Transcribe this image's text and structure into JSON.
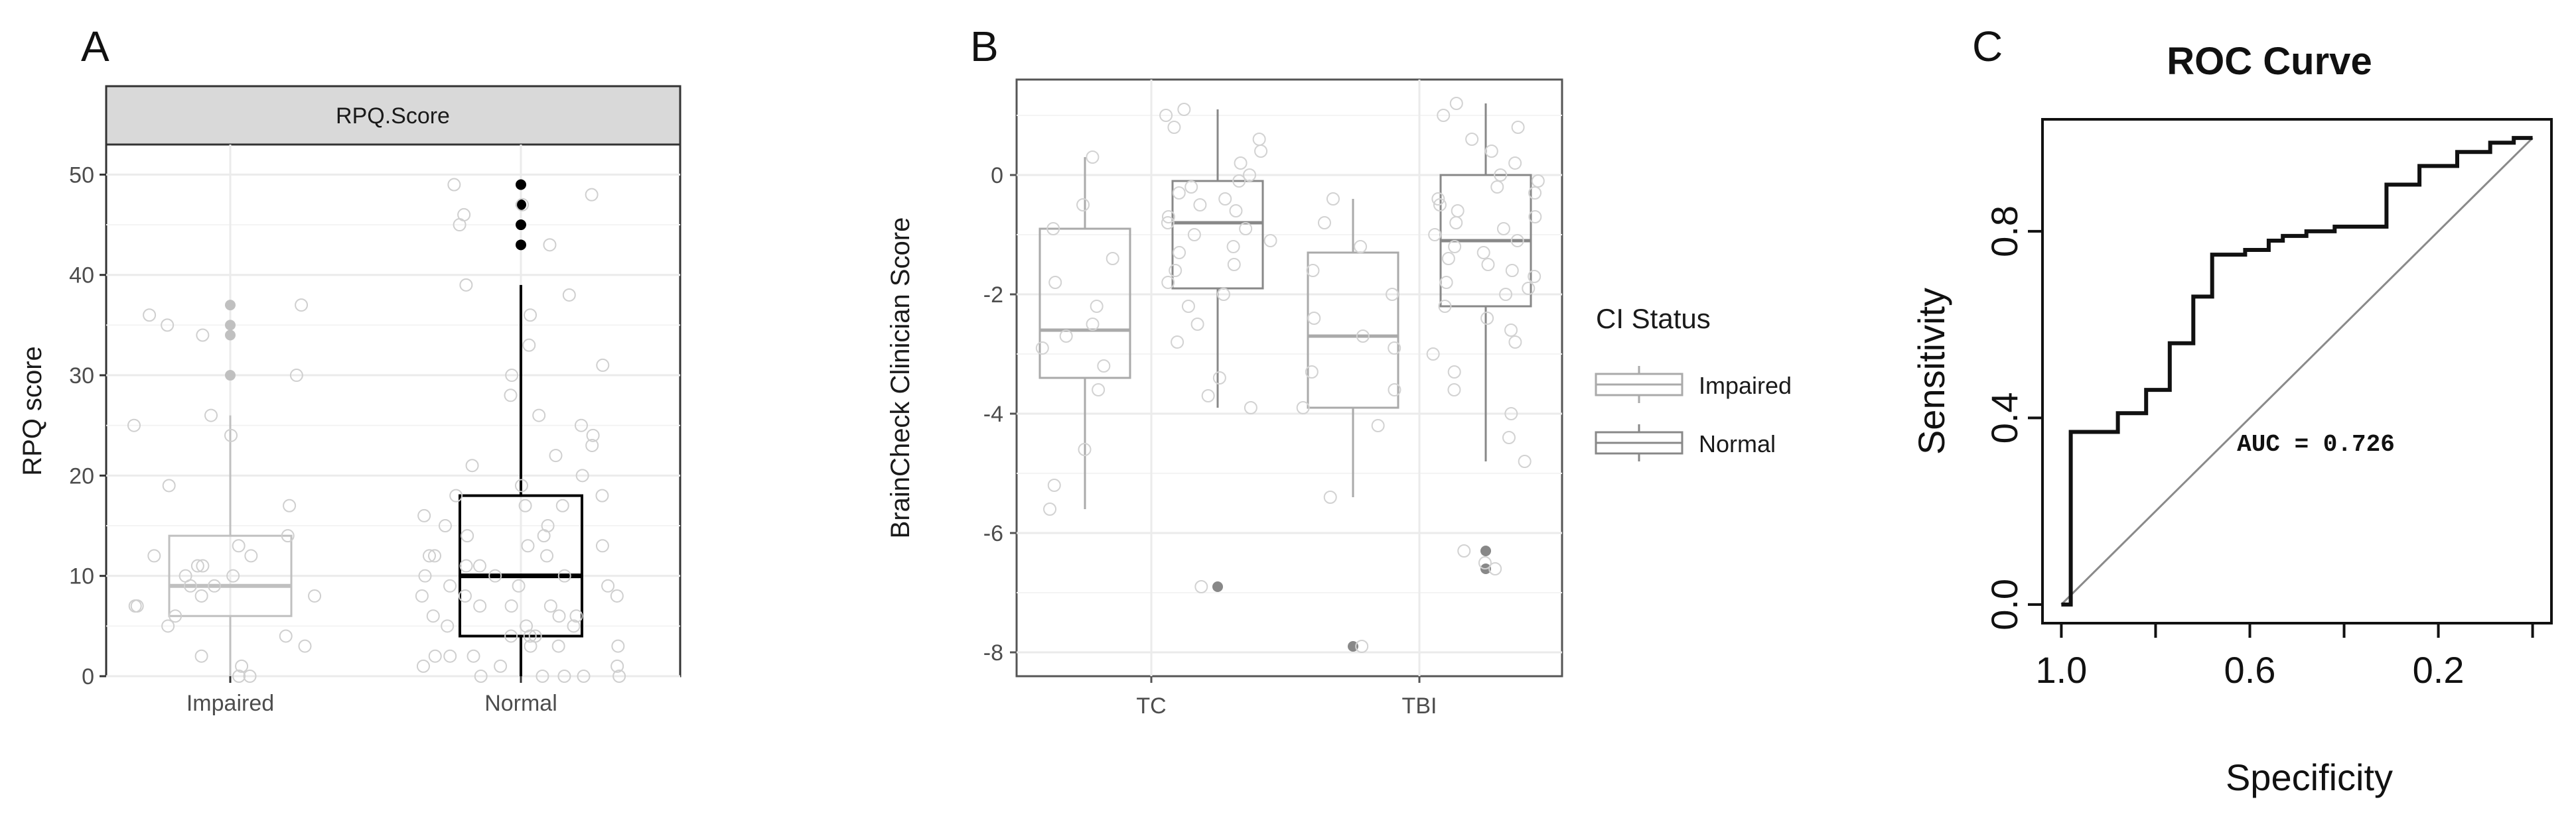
{
  "chart_data": [
    {
      "panel": "A",
      "type": "box",
      "strip_label": "RPQ.Score",
      "xlabel": "",
      "ylabel": "RPQ score",
      "categories": [
        "Impaired",
        "Normal"
      ],
      "ylim": [
        0,
        53
      ],
      "yticks": [
        0,
        10,
        20,
        30,
        40,
        50
      ],
      "grid": true,
      "colors": {
        "Impaired": "#c0c0c0",
        "Normal": "#000000"
      },
      "boxes": [
        {
          "category": "Impaired",
          "q1": 6,
          "median": 9,
          "q3": 14,
          "whisker_low": 0,
          "whisker_high": 26,
          "outliers": [
            30,
            34,
            35,
            37
          ]
        },
        {
          "category": "Normal",
          "q1": 4,
          "median": 10,
          "q3": 18,
          "whisker_low": 0,
          "whisker_high": 39,
          "outliers": [
            43,
            45,
            47,
            49
          ]
        }
      ],
      "points": [
        {
          "category": "Impaired",
          "values": [
            0,
            0,
            1,
            2,
            3,
            4,
            5,
            6,
            7,
            7,
            8,
            8,
            9,
            9,
            10,
            10,
            11,
            11,
            12,
            12,
            13,
            14,
            17,
            19,
            24,
            25,
            26,
            30,
            34,
            35,
            36,
            37
          ]
        },
        {
          "category": "Normal",
          "values": [
            0,
            0,
            0,
            0,
            0,
            1,
            1,
            1,
            2,
            2,
            2,
            3,
            3,
            3,
            4,
            4,
            4,
            5,
            5,
            5,
            6,
            6,
            6,
            7,
            7,
            7,
            8,
            8,
            8,
            9,
            9,
            9,
            10,
            10,
            10,
            11,
            11,
            12,
            12,
            12,
            13,
            13,
            14,
            14,
            15,
            15,
            16,
            17,
            17,
            18,
            18,
            19,
            20,
            21,
            22,
            23,
            24,
            25,
            26,
            28,
            30,
            31,
            33,
            36,
            38,
            39,
            43,
            45,
            46,
            47,
            48,
            49
          ]
        }
      ]
    },
    {
      "panel": "B",
      "type": "box",
      "xlabel": "",
      "ylabel": "BrainCheck Clinician Score",
      "categories": [
        "TC",
        "TBI"
      ],
      "ylim": [
        -8.4,
        1.6
      ],
      "yticks": [
        -8,
        -6,
        -4,
        -2,
        0
      ],
      "grid": true,
      "legend": {
        "title": "CI Status",
        "position": "right",
        "items": [
          "Impaired",
          "Normal"
        ]
      },
      "colors": {
        "Impaired": "#aaaaaa",
        "Normal": "#888888"
      },
      "boxes": [
        {
          "category": "TC",
          "group": "Impaired",
          "q1": -3.4,
          "median": -2.6,
          "q3": -0.9,
          "whisker_low": -5.6,
          "whisker_high": 0.3,
          "outliers": []
        },
        {
          "category": "TC",
          "group": "Normal",
          "q1": -1.9,
          "median": -0.8,
          "q3": -0.1,
          "whisker_low": -3.9,
          "whisker_high": 1.1,
          "outliers": [
            -6.9
          ]
        },
        {
          "category": "TBI",
          "group": "Impaired",
          "q1": -3.9,
          "median": -2.7,
          "q3": -1.3,
          "whisker_low": -5.4,
          "whisker_high": -0.4,
          "outliers": [
            -7.9
          ]
        },
        {
          "category": "TBI",
          "group": "Normal",
          "q1": -2.2,
          "median": -1.1,
          "q3": 0.0,
          "whisker_low": -4.8,
          "whisker_high": 1.2,
          "outliers": [
            -6.3,
            -6.6
          ]
        }
      ],
      "points": [
        {
          "category": "TC",
          "group": "Impaired",
          "values": [
            -5.6,
            -5.2,
            -4.6,
            -3.6,
            -3.2,
            -2.9,
            -2.7,
            -2.5,
            -2.2,
            -1.8,
            -1.4,
            -0.9,
            -0.5,
            0.3
          ]
        },
        {
          "category": "TC",
          "group": "Normal",
          "values": [
            -6.9,
            -3.9,
            -3.7,
            -3.4,
            -2.8,
            -2.5,
            -2.2,
            -2.0,
            -1.8,
            -1.6,
            -1.5,
            -1.3,
            -1.2,
            -1.1,
            -1.0,
            -0.9,
            -0.8,
            -0.7,
            -0.6,
            -0.5,
            -0.4,
            -0.3,
            -0.2,
            -0.1,
            0.0,
            0.2,
            0.4,
            0.6,
            0.8,
            1.0,
            1.1
          ]
        },
        {
          "category": "TBI",
          "group": "Impaired",
          "values": [
            -7.9,
            -5.4,
            -4.2,
            -3.9,
            -3.6,
            -3.3,
            -2.9,
            -2.7,
            -2.4,
            -2.0,
            -1.6,
            -1.2,
            -0.8,
            -0.4
          ]
        },
        {
          "category": "TBI",
          "group": "Normal",
          "values": [
            -6.6,
            -6.5,
            -6.3,
            -4.8,
            -4.4,
            -4.0,
            -3.6,
            -3.3,
            -3.0,
            -2.8,
            -2.6,
            -2.4,
            -2.2,
            -2.0,
            -1.9,
            -1.8,
            -1.7,
            -1.6,
            -1.5,
            -1.4,
            -1.3,
            -1.2,
            -1.1,
            -1.0,
            -0.9,
            -0.8,
            -0.7,
            -0.6,
            -0.5,
            -0.4,
            -0.3,
            -0.2,
            -0.1,
            0.0,
            0.2,
            0.4,
            0.6,
            0.8,
            1.0,
            1.2
          ]
        }
      ]
    },
    {
      "panel": "C",
      "type": "line",
      "title": "ROC Curve",
      "xlabel": "Specificity",
      "ylabel": "Sensitivity",
      "xlim": [
        1.04,
        -0.04
      ],
      "ylim": [
        -0.04,
        1.04
      ],
      "xticks": [
        1.0,
        0.8,
        0.6,
        0.4,
        0.2,
        0.0
      ],
      "xtick_labels": [
        "1.0",
        "0.6",
        "0.2"
      ],
      "yticks": [
        0.0,
        0.4,
        0.8
      ],
      "ytick_labels": [
        "0.0",
        "0.4",
        "0.8"
      ],
      "grid": false,
      "annotation": "AUC = 0.726",
      "reference_line": {
        "from": [
          1.0,
          0.0
        ],
        "to": [
          0.0,
          1.0
        ]
      },
      "series": [
        {
          "x": [
            1.0,
            1.0,
            0.98,
            0.98,
            0.88,
            0.88,
            0.82,
            0.82,
            0.77,
            0.77,
            0.72,
            0.72,
            0.68,
            0.68,
            0.61,
            0.61,
            0.56,
            0.56,
            0.53,
            0.53,
            0.48,
            0.48,
            0.42,
            0.42,
            0.31,
            0.31,
            0.24,
            0.24,
            0.16,
            0.16,
            0.09,
            0.09,
            0.04,
            0.04,
            0.0
          ],
          "y": [
            0.0,
            0.0,
            0.0,
            0.37,
            0.37,
            0.41,
            0.41,
            0.46,
            0.46,
            0.56,
            0.56,
            0.66,
            0.66,
            0.75,
            0.75,
            0.76,
            0.76,
            0.78,
            0.78,
            0.79,
            0.79,
            0.8,
            0.8,
            0.81,
            0.81,
            0.9,
            0.9,
            0.94,
            0.94,
            0.97,
            0.97,
            0.99,
            0.99,
            1.0,
            1.0
          ]
        }
      ]
    }
  ]
}
